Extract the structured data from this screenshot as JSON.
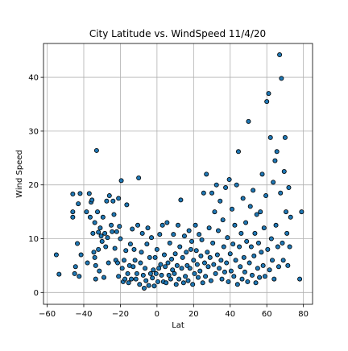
{
  "chart_data": {
    "type": "scatter",
    "title": "City Latitude vs. WindSpeed 11/4/20",
    "xlabel": "Lat",
    "ylabel": "Wind Speed",
    "xlim": [
      -62,
      85
    ],
    "ylim": [
      -2.2,
      46.3
    ],
    "xticks": [
      -60,
      -40,
      -20,
      0,
      20,
      40,
      60,
      80
    ],
    "yticks": [
      0,
      10,
      20,
      30,
      40
    ],
    "grid": true,
    "legend": "none",
    "marker_color": "#1f77b4",
    "marker_edge": "#000000",
    "points": [
      [
        -55,
        7
      ],
      [
        -53.5,
        3.4
      ],
      [
        -46,
        18.3
      ],
      [
        -46,
        15
      ],
      [
        -46,
        14
      ],
      [
        -45,
        3.5
      ],
      [
        -44.5,
        4.8
      ],
      [
        -43.5,
        9.1
      ],
      [
        -43,
        16.5
      ],
      [
        -42.5,
        3
      ],
      [
        -42,
        18.4
      ],
      [
        -41.5,
        7
      ],
      [
        -38.5,
        15
      ],
      [
        -38,
        5.5
      ],
      [
        -37,
        18.4
      ],
      [
        -36.5,
        14
      ],
      [
        -36,
        16.8
      ],
      [
        -35.5,
        17.2
      ],
      [
        -35,
        11
      ],
      [
        -34.5,
        7.5
      ],
      [
        -34,
        13
      ],
      [
        -34,
        6.5
      ],
      [
        -33.5,
        2.5
      ],
      [
        -33.5,
        5
      ],
      [
        -33,
        26.4
      ],
      [
        -32.5,
        15
      ],
      [
        -32,
        11.2
      ],
      [
        -32,
        8
      ],
      [
        -31.5,
        4
      ],
      [
        -31,
        12
      ],
      [
        -30.5,
        10.5
      ],
      [
        -30,
        9.5
      ],
      [
        -29.5,
        14
      ],
      [
        -29,
        2.8
      ],
      [
        -28.5,
        11
      ],
      [
        -28,
        8.5
      ],
      [
        -27.5,
        17
      ],
      [
        -27,
        10.2
      ],
      [
        -26.5,
        5.5
      ],
      [
        -26,
        18
      ],
      [
        -25,
        12.5
      ],
      [
        -24.5,
        11.3
      ],
      [
        -24,
        17
      ],
      [
        -23.5,
        14.5
      ],
      [
        -23,
        8.2
      ],
      [
        -22.5,
        6
      ],
      [
        -22,
        11.3
      ],
      [
        -21.5,
        5.5
      ],
      [
        -21,
        17.5
      ],
      [
        -21,
        3
      ],
      [
        -20.5,
        12.3
      ],
      [
        -20,
        10
      ],
      [
        -19.5,
        20.8
      ],
      [
        -19,
        4.5
      ],
      [
        -18.5,
        2
      ],
      [
        -18,
        6
      ],
      [
        -17.5,
        2.5
      ],
      [
        -17,
        7.8
      ],
      [
        -16.5,
        16.3
      ],
      [
        -16,
        3.5
      ],
      [
        -15.5,
        1.8
      ],
      [
        -15,
        5
      ],
      [
        -14.5,
        9
      ],
      [
        -14,
        2.5
      ],
      [
        -13.5,
        11.8
      ],
      [
        -13,
        4.8
      ],
      [
        -12.5,
        8
      ],
      [
        -12,
        6
      ],
      [
        -11.5,
        2.5
      ],
      [
        -11,
        3.5
      ],
      [
        -10.5,
        12.5
      ],
      [
        -10,
        21.3
      ],
      [
        -9.5,
        1.5
      ],
      [
        -9,
        5.5
      ],
      [
        -8.5,
        7.5
      ],
      [
        -8,
        11
      ],
      [
        -7.5,
        3.2
      ],
      [
        -7,
        0.8
      ],
      [
        -6.5,
        4.5
      ],
      [
        -6,
        2.2
      ],
      [
        -5.5,
        9
      ],
      [
        -5,
        12
      ],
      [
        -4.5,
        1.3
      ],
      [
        -4,
        6.5
      ],
      [
        -3.5,
        3.5
      ],
      [
        -3,
        10.2
      ],
      [
        -2.5,
        2.7
      ],
      [
        -2,
        4.2
      ],
      [
        -1.5,
        1.2
      ],
      [
        -1,
        6.5
      ],
      [
        -0.5,
        3.5
      ],
      [
        0,
        8
      ],
      [
        0.5,
        2
      ],
      [
        1,
        4.5
      ],
      [
        1.5,
        10.8
      ],
      [
        2,
        5.2
      ],
      [
        2.5,
        3.2
      ],
      [
        3,
        12.5
      ],
      [
        3.5,
        2
      ],
      [
        4,
        7
      ],
      [
        4.5,
        4.8
      ],
      [
        5,
        1.8
      ],
      [
        5.5,
        13
      ],
      [
        6,
        5.5
      ],
      [
        6.5,
        3.2
      ],
      [
        7,
        9.2
      ],
      [
        7.5,
        2.5
      ],
      [
        8,
        6.2
      ],
      [
        8.5,
        4.2
      ],
      [
        9,
        10.8
      ],
      [
        9.5,
        3.5
      ],
      [
        10,
        7.2
      ],
      [
        10.5,
        1.5
      ],
      [
        11,
        5
      ],
      [
        11.5,
        12.5
      ],
      [
        12,
        2.5
      ],
      [
        12.5,
        8.5
      ],
      [
        13,
        17.2
      ],
      [
        13.5,
        4.5
      ],
      [
        14,
        6.5
      ],
      [
        14.5,
        1.8
      ],
      [
        15,
        10.5
      ],
      [
        15.5,
        3
      ],
      [
        16,
        7.5
      ],
      [
        16.5,
        5
      ],
      [
        17,
        2.2
      ],
      [
        17.5,
        11.5
      ],
      [
        18,
        4.5
      ],
      [
        18.5,
        8
      ],
      [
        19,
        9.5
      ],
      [
        19.5,
        1.5
      ],
      [
        20,
        6
      ],
      [
        20.5,
        3.5
      ],
      [
        21,
        12.5
      ],
      [
        21.5,
        7.8
      ],
      [
        22,
        5.2
      ],
      [
        22.5,
        2.8
      ],
      [
        23,
        10.8
      ],
      [
        23.5,
        4
      ],
      [
        24,
        6.8
      ],
      [
        24.5,
        9.8
      ],
      [
        25,
        1.8
      ],
      [
        25.5,
        18.5
      ],
      [
        26,
        5.5
      ],
      [
        26.5,
        3
      ],
      [
        27,
        22
      ],
      [
        27.5,
        7.5
      ],
      [
        28,
        4.8
      ],
      [
        28.5,
        12
      ],
      [
        29,
        6.5
      ],
      [
        29.5,
        2.2
      ],
      [
        30,
        18.5
      ],
      [
        30.5,
        9.2
      ],
      [
        31,
        5.2
      ],
      [
        31.5,
        15
      ],
      [
        32,
        3.5
      ],
      [
        32.5,
        20
      ],
      [
        33,
        7
      ],
      [
        33.5,
        11.5
      ],
      [
        34,
        4.5
      ],
      [
        34.5,
        17
      ],
      [
        35,
        6
      ],
      [
        35.5,
        2.5
      ],
      [
        36,
        13.5
      ],
      [
        36.5,
        8.5
      ],
      [
        37,
        3.8
      ],
      [
        37.5,
        19.5
      ],
      [
        38,
        5.5
      ],
      [
        38.5,
        10.2
      ],
      [
        39,
        2
      ],
      [
        39.5,
        21
      ],
      [
        40,
        7.2
      ],
      [
        40.5,
        4
      ],
      [
        41,
        15.5
      ],
      [
        41.5,
        9
      ],
      [
        42,
        3
      ],
      [
        42.5,
        12.5
      ],
      [
        43,
        6
      ],
      [
        43.5,
        20
      ],
      [
        44,
        1.5
      ],
      [
        44.5,
        26.2
      ],
      [
        45,
        8.5
      ],
      [
        45.5,
        4.8
      ],
      [
        46,
        11
      ],
      [
        46.5,
        2.5
      ],
      [
        47,
        17.5
      ],
      [
        47.5,
        6.5
      ],
      [
        48,
        3.8
      ],
      [
        48.5,
        13
      ],
      [
        49,
        9.5
      ],
      [
        49.5,
        2
      ],
      [
        50,
        31.8
      ],
      [
        50.5,
        5.5
      ],
      [
        51,
        16
      ],
      [
        51.5,
        8.5
      ],
      [
        52,
        3.2
      ],
      [
        52.5,
        19
      ],
      [
        53,
        6.8
      ],
      [
        53.5,
        11
      ],
      [
        54,
        1.8
      ],
      [
        54.5,
        14.5
      ],
      [
        55,
        4.5
      ],
      [
        55.5,
        9.2
      ],
      [
        56,
        2.8
      ],
      [
        56.5,
        15
      ],
      [
        57,
        7.5
      ],
      [
        57.5,
        22
      ],
      [
        58,
        5
      ],
      [
        58.5,
        12
      ],
      [
        59,
        3
      ],
      [
        59.5,
        18
      ],
      [
        60,
        35.5
      ],
      [
        60.5,
        8
      ],
      [
        61,
        37
      ],
      [
        61.5,
        4.2
      ],
      [
        62,
        28.8
      ],
      [
        62.5,
        10
      ],
      [
        63,
        6
      ],
      [
        63.5,
        20.5
      ],
      [
        64,
        2.5
      ],
      [
        64.5,
        24.5
      ],
      [
        65,
        12.5
      ],
      [
        65.5,
        26.2
      ],
      [
        66,
        8.5
      ],
      [
        66.5,
        4.8
      ],
      [
        67,
        44.2
      ],
      [
        67.5,
        18.5
      ],
      [
        68,
        39.8
      ],
      [
        68.5,
        9.2
      ],
      [
        69,
        6
      ],
      [
        69.5,
        22.5
      ],
      [
        70,
        28.8
      ],
      [
        70.5,
        15
      ],
      [
        71,
        11
      ],
      [
        71.5,
        5
      ],
      [
        72,
        19.5
      ],
      [
        72.5,
        8.5
      ],
      [
        73,
        14
      ],
      [
        78,
        2.5
      ],
      [
        79,
        15
      ]
    ]
  }
}
